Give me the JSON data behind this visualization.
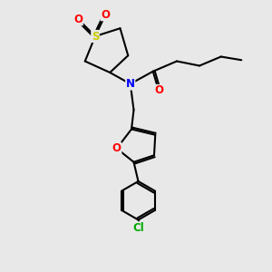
{
  "background_color": "#e8e8e8",
  "bond_color": "#000000",
  "atom_colors": {
    "N": "#0000ff",
    "O": "#ff0000",
    "S": "#cccc00",
    "Cl": "#00aa00",
    "C": "#000000"
  },
  "line_width": 1.5,
  "font_size": 8.5
}
